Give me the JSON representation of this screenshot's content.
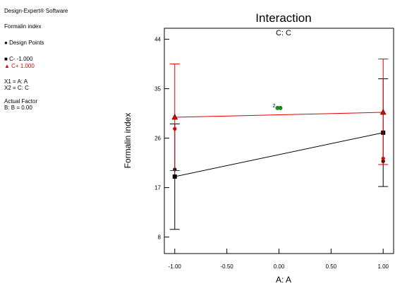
{
  "sidebar": {
    "software": "Design-Expert® Software",
    "response": "Formalin index",
    "design_points": "Design Points",
    "c_minus": "C- -1.000",
    "c_plus": "C+ 1.000",
    "x1": "X1 = A: A",
    "x2": "X2 = C: C",
    "actual_factor": "Actual Factor",
    "factor_b": "B: B = 0.00"
  },
  "colors": {
    "c_minus": "#000000",
    "c_plus": "#e00000",
    "center": "#1a8a1a"
  },
  "chart_data": {
    "type": "line",
    "title": "Interaction",
    "subtitle": "C: C",
    "xlabel": "A: A",
    "ylabel": "Formalin index",
    "xlim": [
      -1.1,
      1.1
    ],
    "ylim": [
      5,
      46
    ],
    "x_ticks": [
      -1.0,
      -0.5,
      0.0,
      0.5,
      1.0
    ],
    "x_tick_labels": [
      "-1.00",
      "-0.50",
      "0.00",
      "0.50",
      "1.00"
    ],
    "y_ticks": [
      8,
      17,
      26,
      35,
      44
    ],
    "y_tick_labels": [
      "8",
      "17",
      "26",
      "35",
      "44"
    ],
    "grid": false,
    "series": [
      {
        "name": "C- -1.000",
        "marker": "square",
        "color": "#000000",
        "x": [
          -1.0,
          1.0
        ],
        "y": [
          19.0,
          27.0
        ],
        "ci_low": [
          9.4,
          17.2
        ],
        "ci_high": [
          28.6,
          36.8
        ],
        "points": [
          [
            -1.0,
            20.3
          ],
          [
            1.0,
            21.8
          ]
        ]
      },
      {
        "name": "C+ 1.000",
        "marker": "triangle",
        "color": "#e00000",
        "x": [
          -1.0,
          1.0
        ],
        "y": [
          29.8,
          30.7
        ],
        "ci_low": [
          20.1,
          21.2
        ],
        "ci_high": [
          39.5,
          40.4
        ],
        "points": [
          [
            -1.0,
            27.7
          ],
          [
            1.0,
            22.3
          ]
        ]
      }
    ],
    "center_points": {
      "x": 0.0,
      "y": 31.5,
      "label": "2"
    }
  }
}
